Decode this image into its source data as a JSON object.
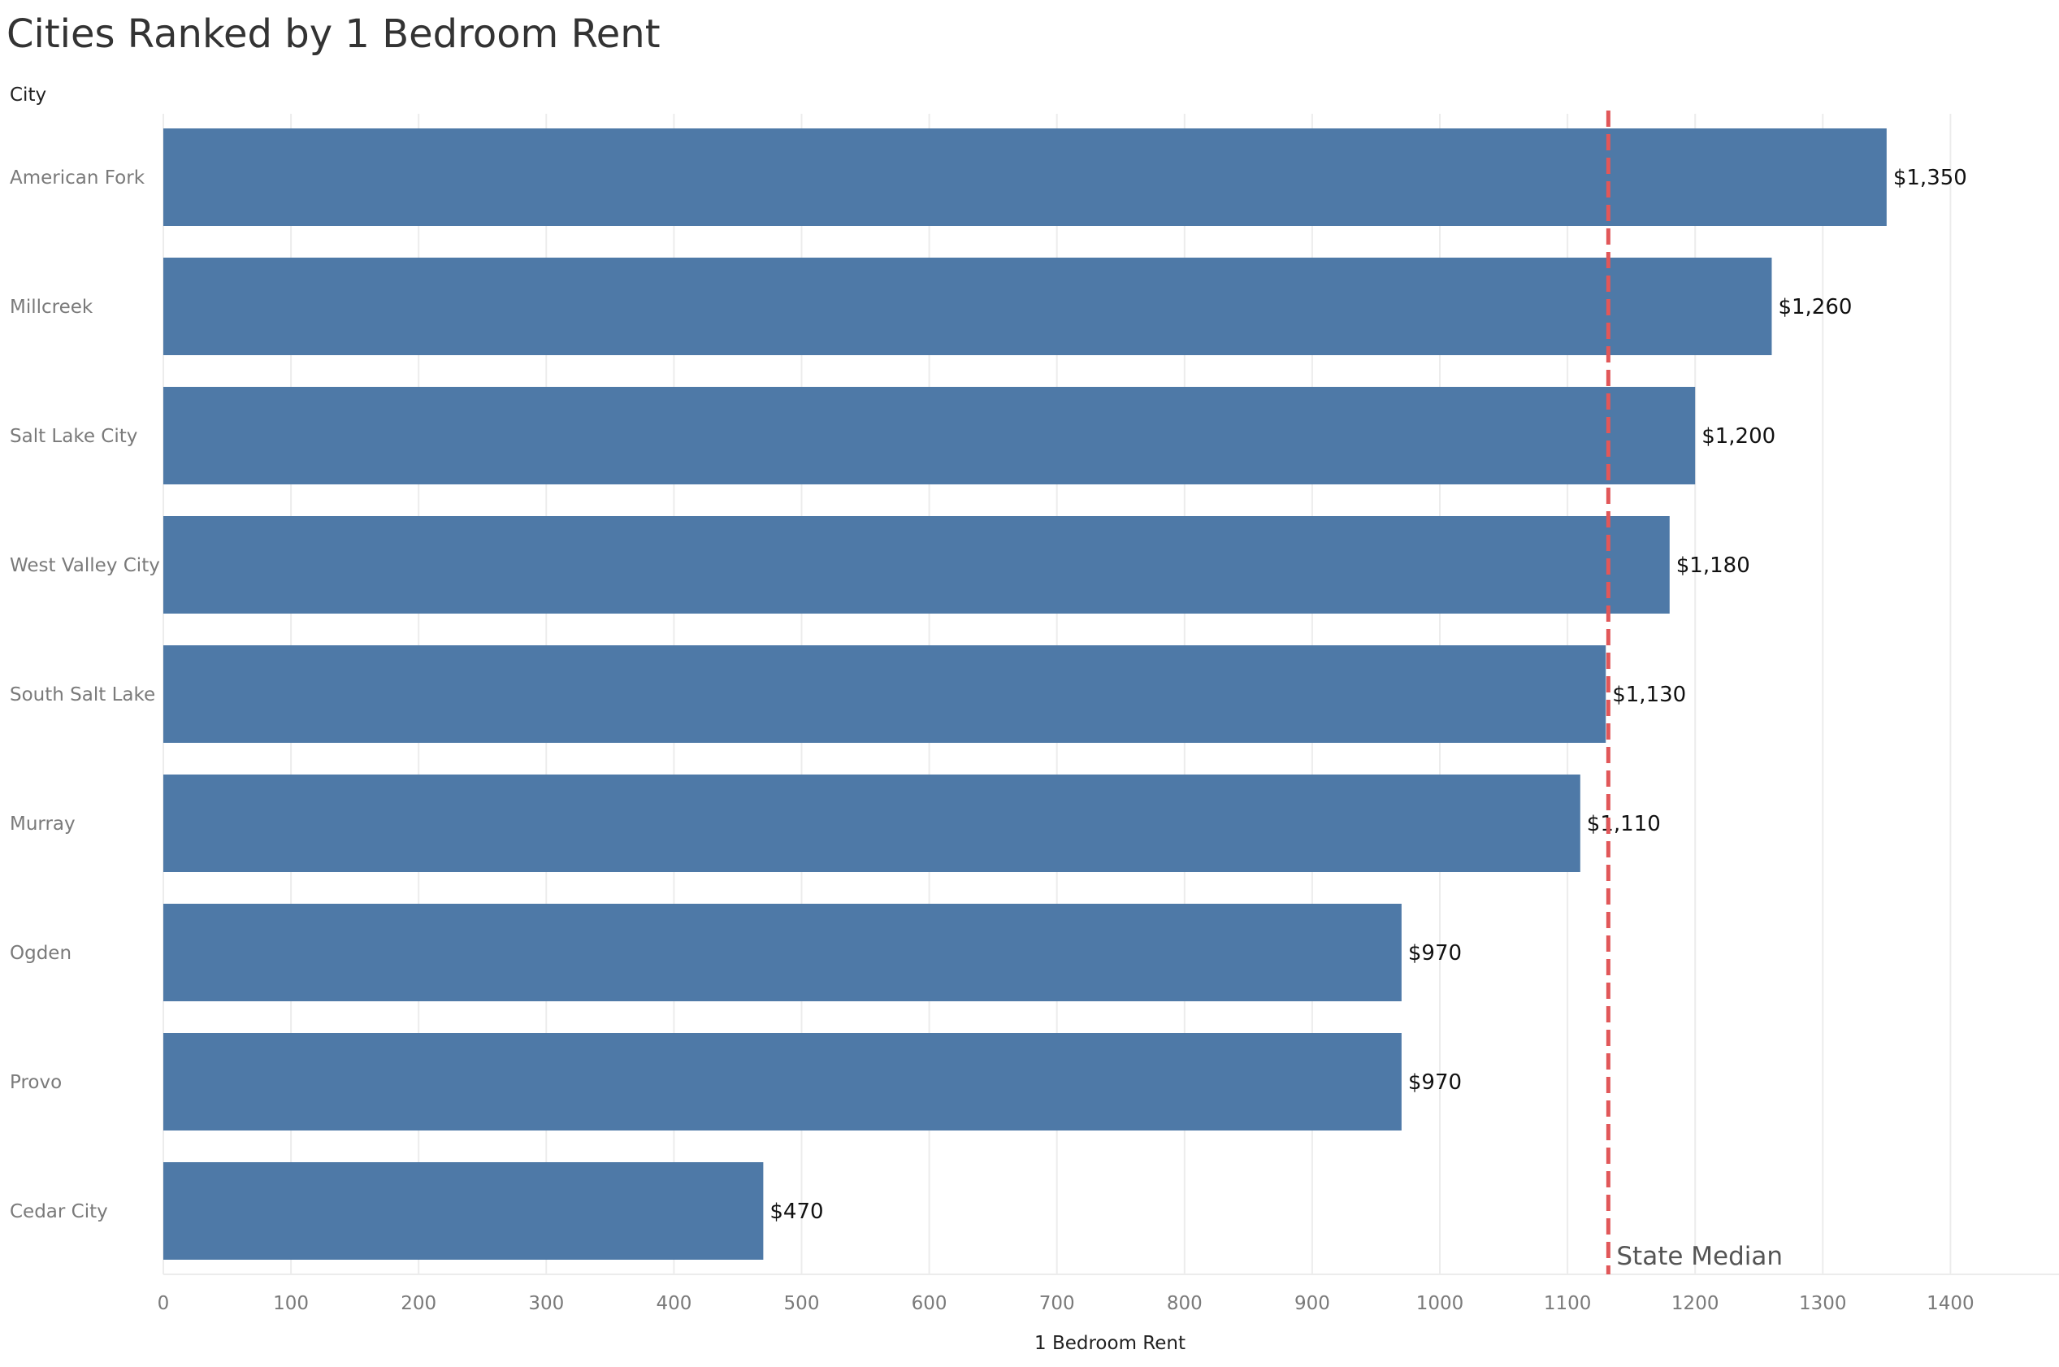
{
  "header": {
    "title": "Cities Ranked by 1 Bedroom Rent",
    "row_header": "City"
  },
  "chart_data": {
    "type": "bar",
    "orientation": "horizontal",
    "title": "Cities Ranked by 1 Bedroom Rent",
    "xlabel": "1 Bedroom Rent",
    "ylabel": "City",
    "categories": [
      "American Fork",
      "Millcreek",
      "Salt Lake City",
      "West Valley City",
      "South Salt Lake",
      "Murray",
      "Ogden",
      "Provo",
      "Cedar City"
    ],
    "values": [
      1350,
      1260,
      1200,
      1180,
      1130,
      1110,
      970,
      970,
      470
    ],
    "data_labels": [
      "$1,350",
      "$1,260",
      "$1,200",
      "$1,180",
      "$1,130",
      "$1,110",
      "$970",
      "$970",
      "$470"
    ],
    "xlim": [
      0,
      1480
    ],
    "xticks": [
      0,
      100,
      200,
      300,
      400,
      500,
      600,
      700,
      800,
      900,
      1000,
      1100,
      1200,
      1300,
      1400
    ],
    "xtick_labels": [
      "0",
      "100",
      "200",
      "300",
      "400",
      "500",
      "600",
      "700",
      "800",
      "900",
      "1000",
      "1100",
      "1200",
      "1300",
      "1400"
    ],
    "grid": true,
    "bar_color": "#4e79a7",
    "reference_line": {
      "label": "State Median",
      "value": 1132,
      "color": "#e15759",
      "style": "dashed"
    }
  }
}
